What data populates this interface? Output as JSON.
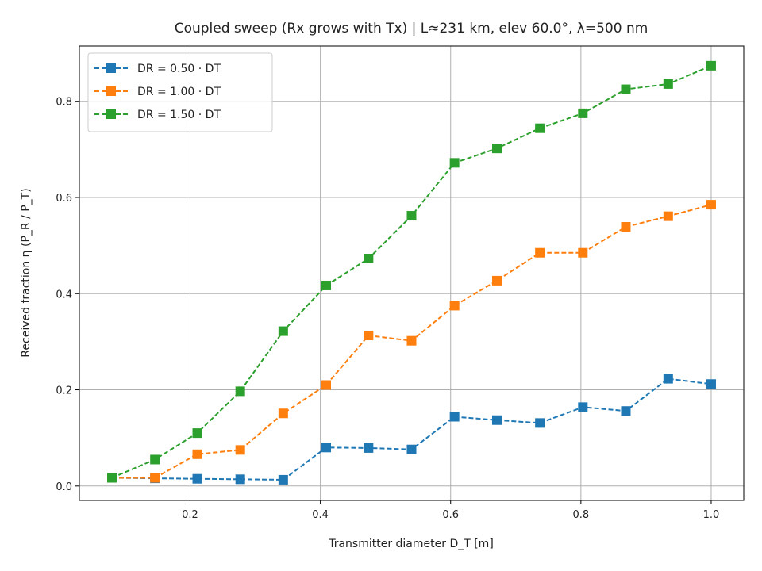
{
  "chart_data": {
    "type": "line",
    "title": "Coupled sweep (Rx grows with Tx) | L≈231 km, elev 60.0°, λ=500 nm",
    "xlabel": "Transmitter diameter D_T [m]",
    "ylabel": "Received fraction η (P_R / P_T)",
    "xlim": [
      0.03,
      1.05
    ],
    "ylim": [
      -0.03,
      0.915
    ],
    "xticks": [
      0.2,
      0.4,
      0.6,
      0.8,
      1.0
    ],
    "xtick_labels": [
      "0.2",
      "0.4",
      "0.6",
      "0.8",
      "1.0"
    ],
    "yticks": [
      0.0,
      0.2,
      0.4,
      0.6,
      0.8
    ],
    "ytick_labels": [
      "0.0",
      "0.2",
      "0.4",
      "0.6",
      "0.8"
    ],
    "grid": true,
    "legend_position": "top-left",
    "x": [
      0.08,
      0.146,
      0.211,
      0.277,
      0.343,
      0.409,
      0.474,
      0.54,
      0.606,
      0.671,
      0.737,
      0.803,
      0.869,
      0.934,
      1.0
    ],
    "series": [
      {
        "name": "DR = 0.50 · DT",
        "color": "#1f77b4",
        "values": [
          0.017,
          0.016,
          0.015,
          0.014,
          0.013,
          0.08,
          0.079,
          0.076,
          0.144,
          0.137,
          0.131,
          0.164,
          0.156,
          0.223,
          0.212
        ]
      },
      {
        "name": "DR = 1.00 · DT",
        "color": "#ff7f0e",
        "values": [
          0.017,
          0.017,
          0.066,
          0.075,
          0.151,
          0.21,
          0.313,
          0.302,
          0.375,
          0.427,
          0.485,
          0.485,
          0.539,
          0.561,
          0.585
        ]
      },
      {
        "name": "DR = 1.50 · DT",
        "color": "#2ca02c",
        "values": [
          0.017,
          0.055,
          0.11,
          0.197,
          0.322,
          0.417,
          0.473,
          0.562,
          0.672,
          0.702,
          0.744,
          0.775,
          0.825,
          0.836,
          0.874
        ]
      }
    ]
  }
}
